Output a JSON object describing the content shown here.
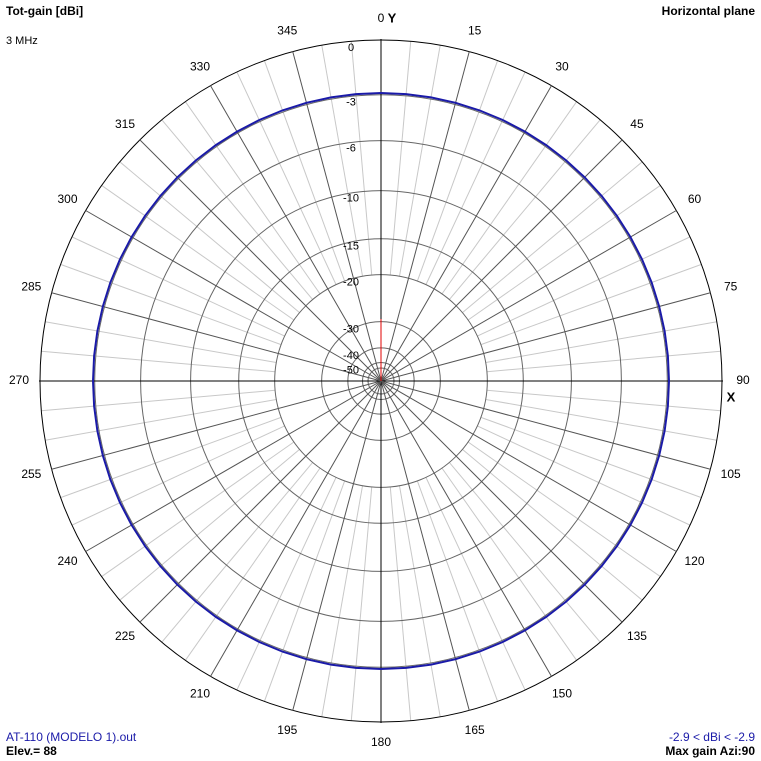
{
  "chart_data": {
    "type": "polar",
    "title": "Tot-gain [dBi]",
    "subtitle": "3 MHz",
    "plane": "Horizontal plane",
    "y_axis_label": "Y",
    "x_axis_label": "X",
    "file": "AT-110 (MODELO 1).out",
    "elevation": "Elev.= 88",
    "range_text": "-2.9 < dBi < -2.9",
    "max_gain": "Max gain Azi:90",
    "thetaticks": [
      0,
      15,
      30,
      45,
      60,
      75,
      90,
      105,
      120,
      135,
      150,
      165,
      180,
      195,
      210,
      225,
      240,
      255,
      270,
      285,
      300,
      315,
      330,
      345
    ],
    "yticks": [
      0,
      -3,
      -6,
      -10,
      -15,
      -20,
      -30,
      -40,
      -50
    ],
    "series": [
      {
        "color": "#1a1aa8",
        "x": [
          0,
          5,
          10,
          15,
          20,
          25,
          30,
          35,
          40,
          45,
          50,
          55,
          60,
          65,
          70,
          75,
          80,
          85,
          90,
          95,
          100,
          105,
          110,
          115,
          120,
          125,
          130,
          135,
          140,
          145,
          150,
          155,
          160,
          165,
          170,
          175,
          180,
          185,
          190,
          195,
          200,
          205,
          210,
          215,
          220,
          225,
          230,
          235,
          240,
          245,
          250,
          255,
          260,
          265,
          270,
          275,
          280,
          285,
          290,
          295,
          300,
          305,
          310,
          315,
          320,
          325,
          330,
          335,
          340,
          345,
          350,
          355
        ],
        "values": [
          -2.9,
          -2.9,
          -2.9,
          -2.9,
          -2.9,
          -2.9,
          -2.9,
          -2.9,
          -2.9,
          -2.9,
          -2.9,
          -2.9,
          -2.9,
          -2.9,
          -2.9,
          -2.9,
          -2.9,
          -2.9,
          -2.9,
          -2.9,
          -2.9,
          -2.9,
          -2.9,
          -2.9,
          -2.9,
          -2.9,
          -2.9,
          -2.9,
          -2.9,
          -2.9,
          -2.9,
          -2.9,
          -2.9,
          -2.9,
          -2.9,
          -2.9,
          -2.9,
          -2.9,
          -2.9,
          -2.9,
          -2.9,
          -2.9,
          -2.9,
          -2.9,
          -2.9,
          -2.9,
          -2.9,
          -2.9,
          -2.9,
          -2.9,
          -2.9,
          -2.9,
          -2.9,
          -2.9,
          -2.9,
          -2.9,
          -2.9,
          -2.9,
          -2.9,
          -2.9,
          -2.9,
          -2.9,
          -2.9,
          -2.9,
          -2.9,
          -2.9,
          -2.9,
          -2.9,
          -2.9,
          -2.9,
          -2.9,
          -2.9
        ]
      }
    ]
  }
}
